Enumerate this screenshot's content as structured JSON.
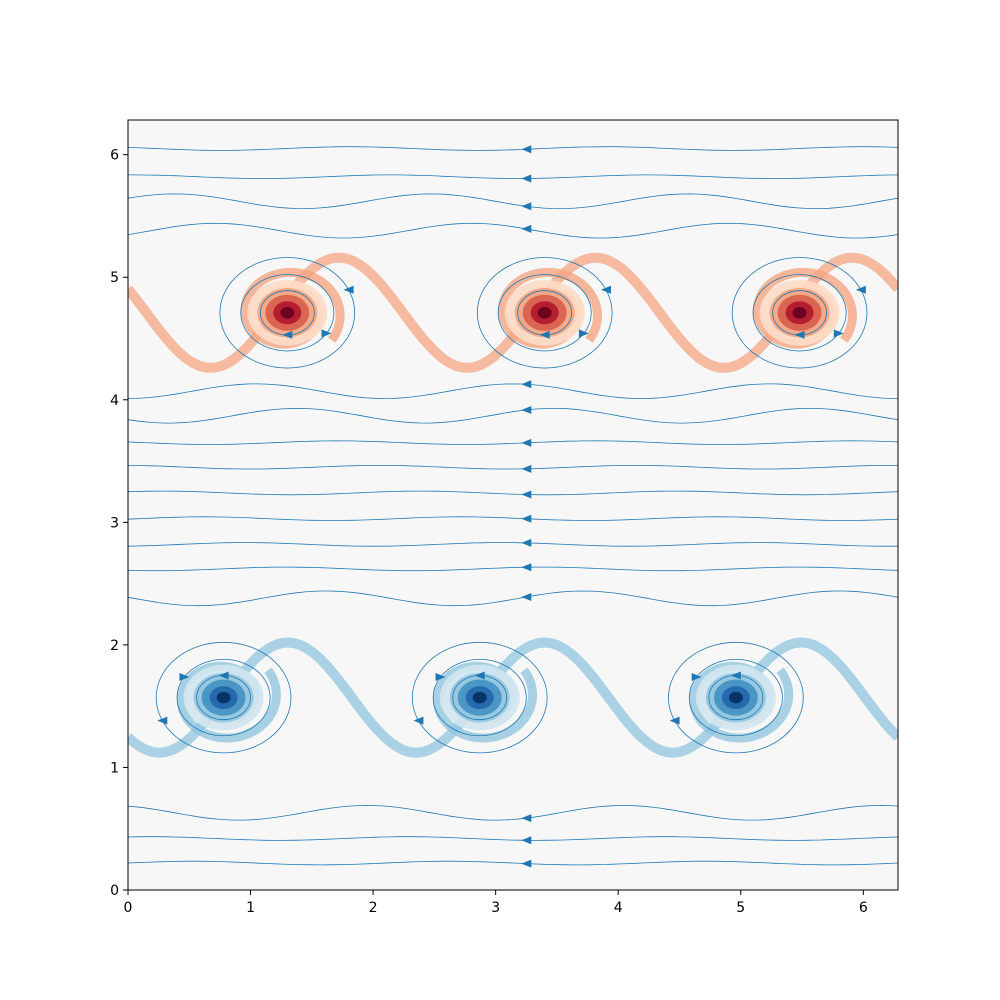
{
  "chart_data": {
    "type": "heatmap",
    "title": "",
    "xlabel": "",
    "ylabel": "",
    "xlim": [
      0,
      6.283
    ],
    "ylim": [
      0,
      6.283
    ],
    "grid": false,
    "x_ticks": [
      0,
      1,
      2,
      3,
      4,
      5,
      6
    ],
    "y_ticks": [
      0,
      1,
      2,
      3,
      4,
      5,
      6
    ],
    "x_tick_labels": [
      "0",
      "1",
      "2",
      "3",
      "4",
      "5",
      "6"
    ],
    "y_tick_labels": [
      "0",
      "1",
      "2",
      "3",
      "4",
      "5",
      "6"
    ],
    "colormap": "RdBu_r",
    "colors": {
      "positive": "#b2182b",
      "negative": "#2166ac",
      "neutral": "#f7f7f7",
      "streamline": "#1f77b4"
    },
    "vortices": [
      {
        "x": 1.3,
        "y": 4.71,
        "sign": 1
      },
      {
        "x": 3.4,
        "y": 4.71,
        "sign": 1
      },
      {
        "x": 5.48,
        "y": 4.71,
        "sign": 1
      },
      {
        "x": 0.78,
        "y": 1.57,
        "sign": -1
      },
      {
        "x": 2.87,
        "y": 1.57,
        "sign": -1
      },
      {
        "x": 4.96,
        "y": 1.57,
        "sign": -1
      }
    ],
    "shear_layers": [
      {
        "y_mean": 4.71,
        "amplitude": 0.45,
        "sign": 1,
        "phase": 0.15
      },
      {
        "y_mean": 1.57,
        "amplitude": 0.45,
        "sign": -1,
        "phase": 0.78
      }
    ],
    "streamlines": {
      "horizontal_y": [
        0.22,
        0.42,
        0.63,
        2.38,
        2.62,
        2.82,
        3.03,
        3.24,
        3.45,
        3.65,
        3.87,
        4.07,
        5.38,
        5.62,
        5.82,
        6.05
      ],
      "arrow_x": 3.25,
      "direction": "left"
    }
  }
}
